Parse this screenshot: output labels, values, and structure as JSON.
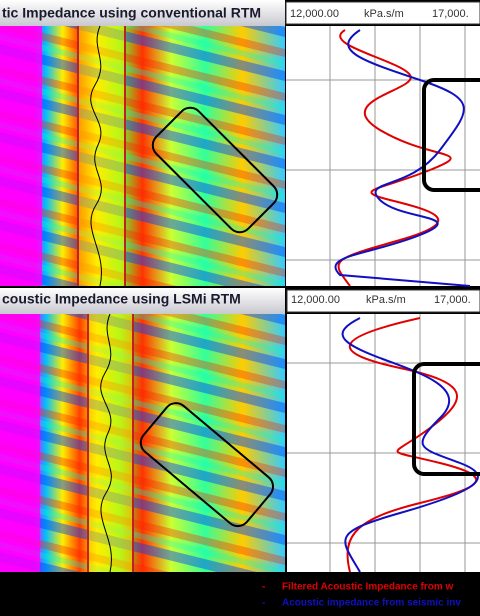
{
  "panels": [
    {
      "title": "tic Impedance using conventional RTM",
      "scale_min": "12,000.00",
      "unit": "kPa.s/m",
      "scale_max": "17,000."
    },
    {
      "title": "coustic Impedance using LSMi RTM",
      "scale_min": "12,000.00",
      "unit": "kPa.s/m",
      "scale_max": "17,000."
    }
  ],
  "legend": [
    {
      "marker": "-",
      "label": "Filtered Acoustic Impedance from w",
      "color": "#e00000"
    },
    {
      "marker": "-",
      "label": "Acoustic impedance from seismic inv",
      "color": "#1010c0"
    }
  ]
}
